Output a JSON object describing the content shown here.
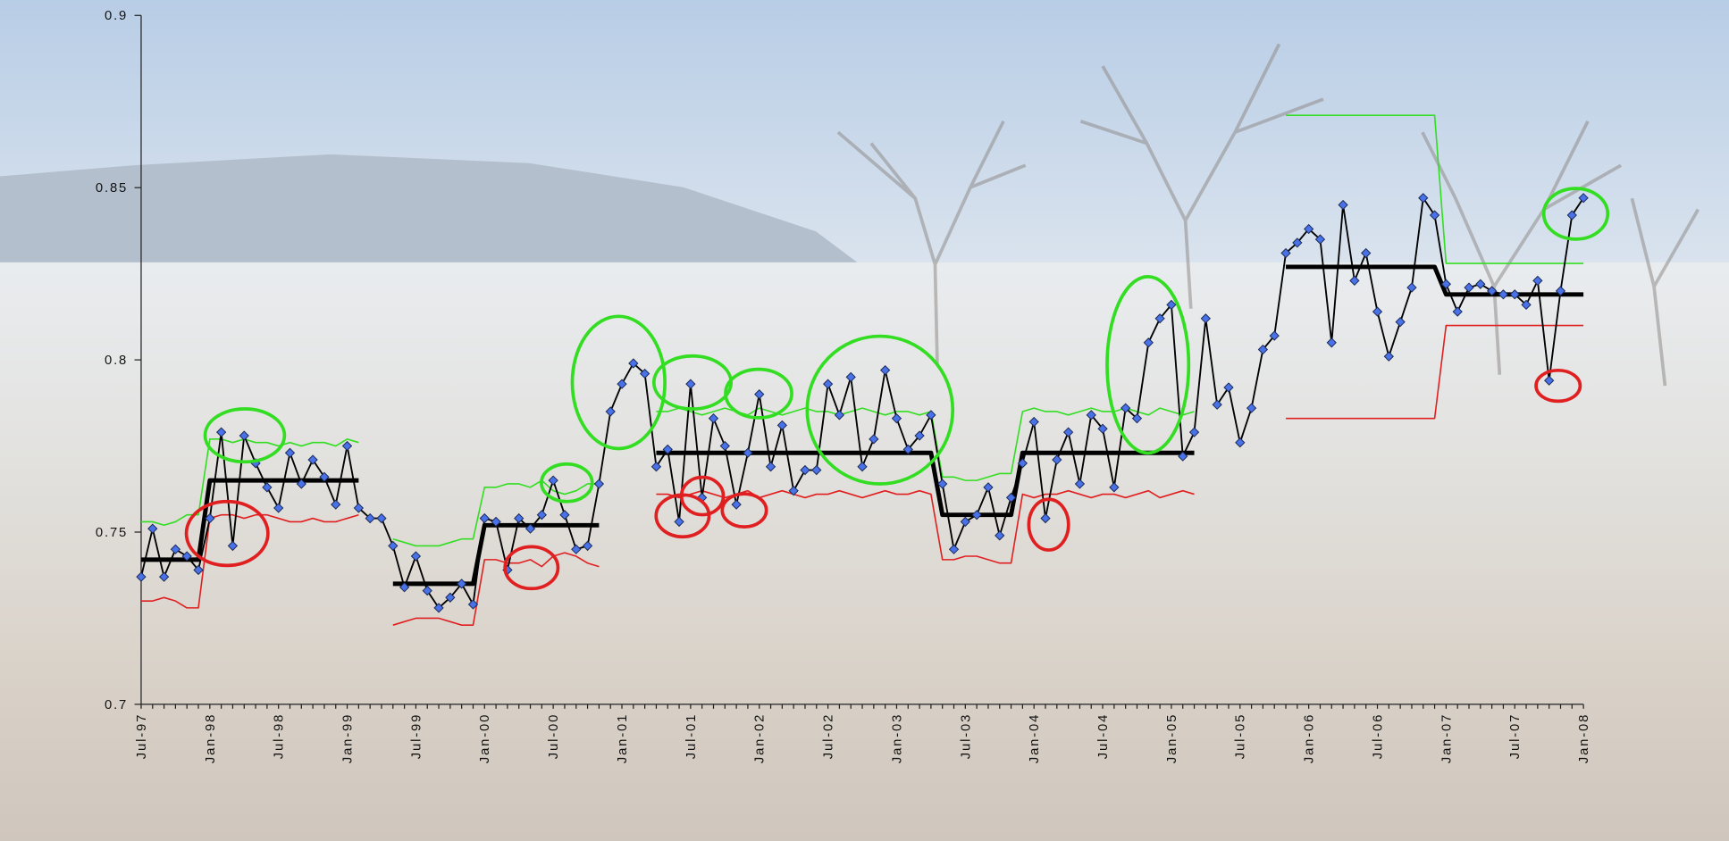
{
  "chart_data": {
    "type": "line",
    "categories": [
      "Jul-97",
      null,
      null,
      null,
      null,
      null,
      "Jan-98",
      null,
      null,
      null,
      null,
      null,
      "Jul-98",
      null,
      null,
      null,
      null,
      null,
      "Jan-99",
      null,
      null,
      null,
      null,
      null,
      "Jul-99",
      null,
      null,
      null,
      null,
      null,
      "Jan-00",
      null,
      null,
      null,
      null,
      null,
      "Jul-00",
      null,
      null,
      null,
      null,
      null,
      "Jan-01",
      null,
      null,
      null,
      null,
      null,
      "Jul-01",
      null,
      null,
      null,
      null,
      null,
      "Jan-02",
      null,
      null,
      null,
      null,
      null,
      "Jul-02",
      null,
      null,
      null,
      null,
      null,
      "Jan-03",
      null,
      null,
      null,
      null,
      null,
      "Jul-03",
      null,
      null,
      null,
      null,
      null,
      "Jan-04",
      null,
      null,
      null,
      null,
      null,
      "Jul-04",
      null,
      null,
      null,
      null,
      null,
      "Jan-05",
      null,
      null,
      null,
      null,
      null,
      "Jul-05",
      null,
      null,
      null,
      null,
      null,
      "Jan-06",
      null,
      null,
      null,
      null,
      null,
      "Jul-06",
      null,
      null,
      null,
      null,
      null,
      "Jan-07",
      null,
      null,
      null,
      null,
      null,
      "Jul-07",
      null,
      null,
      null,
      null,
      null,
      "Jan-08"
    ],
    "series": [
      {
        "color": "#e02020",
        "width": 1.3,
        "values": [
          0.73,
          0.73,
          0.731,
          0.73,
          0.728,
          0.728,
          0.754,
          0.755,
          0.755,
          0.754,
          0.755,
          0.755,
          0.754,
          0.753,
          0.753,
          0.754,
          0.753,
          0.753,
          0.754,
          0.755,
          null,
          null,
          0.723,
          0.724,
          0.725,
          0.725,
          0.725,
          0.724,
          0.723,
          0.723,
          0.742,
          0.742,
          0.741,
          0.741,
          0.742,
          0.74,
          0.743,
          0.744,
          0.743,
          0.741,
          0.74,
          null,
          null,
          null,
          null,
          0.761,
          0.761,
          0.76,
          0.761,
          0.762,
          0.761,
          0.76,
          0.761,
          0.762,
          0.76,
          0.761,
          0.762,
          0.761,
          0.76,
          0.761,
          0.761,
          0.762,
          0.761,
          0.76,
          0.761,
          0.762,
          0.761,
          0.761,
          0.762,
          0.761,
          0.742,
          0.742,
          0.743,
          0.743,
          0.742,
          0.741,
          0.741,
          0.761,
          0.76,
          0.761,
          0.761,
          0.762,
          0.761,
          0.76,
          0.761,
          0.761,
          0.76,
          0.761,
          0.762,
          0.76,
          0.761,
          0.762,
          0.761,
          null,
          null,
          null,
          null,
          null,
          null,
          null,
          0.783,
          0.783,
          0.783,
          0.783,
          0.783,
          0.783,
          0.783,
          0.783,
          0.783,
          0.783,
          0.783,
          0.783,
          0.783,
          0.783,
          0.81,
          0.81,
          0.81,
          0.81,
          0.81,
          0.81,
          0.81,
          0.81,
          0.81,
          0.81,
          0.81,
          0.81,
          0.81
        ]
      },
      {
        "color": "#33dd22",
        "width": 1.3,
        "values": [
          0.753,
          0.753,
          0.752,
          0.753,
          0.755,
          0.755,
          0.777,
          0.777,
          0.776,
          0.777,
          0.776,
          0.776,
          0.775,
          0.776,
          0.775,
          0.776,
          0.776,
          0.775,
          0.777,
          0.776,
          null,
          null,
          0.748,
          0.747,
          0.746,
          0.746,
          0.746,
          0.747,
          0.748,
          0.748,
          0.763,
          0.763,
          0.764,
          0.764,
          0.763,
          0.765,
          0.762,
          0.761,
          0.762,
          0.764,
          0.764,
          null,
          null,
          null,
          null,
          0.785,
          0.785,
          0.786,
          0.785,
          0.784,
          0.785,
          0.786,
          0.785,
          0.784,
          0.786,
          0.785,
          0.784,
          0.785,
          0.786,
          0.785,
          0.785,
          0.784,
          0.785,
          0.786,
          0.785,
          0.784,
          0.785,
          0.785,
          0.784,
          0.785,
          0.766,
          0.766,
          0.765,
          0.765,
          0.766,
          0.767,
          0.767,
          0.785,
          0.786,
          0.785,
          0.785,
          0.784,
          0.785,
          0.786,
          0.785,
          0.785,
          0.786,
          0.785,
          0.784,
          0.786,
          0.785,
          0.784,
          0.785,
          null,
          null,
          null,
          null,
          null,
          null,
          null,
          0.871,
          0.871,
          0.871,
          0.871,
          0.871,
          0.871,
          0.871,
          0.871,
          0.871,
          0.871,
          0.871,
          0.871,
          0.871,
          0.871,
          0.828,
          0.828,
          0.828,
          0.828,
          0.828,
          0.828,
          0.828,
          0.828,
          0.828,
          0.828,
          0.828,
          0.828,
          0.828
        ]
      },
      {
        "color": "#000000",
        "width": 4,
        "values": [
          0.742,
          0.742,
          0.742,
          0.742,
          0.742,
          0.742,
          0.765,
          0.765,
          0.765,
          0.765,
          0.765,
          0.765,
          0.765,
          0.765,
          0.765,
          0.765,
          0.765,
          0.765,
          0.765,
          0.765,
          null,
          null,
          0.735,
          0.735,
          0.735,
          0.735,
          0.735,
          0.735,
          0.735,
          0.735,
          0.752,
          0.752,
          0.752,
          0.752,
          0.752,
          0.752,
          0.752,
          0.752,
          0.752,
          0.752,
          0.752,
          null,
          null,
          null,
          null,
          0.773,
          0.773,
          0.773,
          0.773,
          0.773,
          0.773,
          0.773,
          0.773,
          0.773,
          0.773,
          0.773,
          0.773,
          0.773,
          0.773,
          0.773,
          0.773,
          0.773,
          0.773,
          0.773,
          0.773,
          0.773,
          0.773,
          0.773,
          0.773,
          0.773,
          0.755,
          0.755,
          0.755,
          0.755,
          0.755,
          0.755,
          0.755,
          0.773,
          0.773,
          0.773,
          0.773,
          0.773,
          0.773,
          0.773,
          0.773,
          0.773,
          0.773,
          0.773,
          0.773,
          0.773,
          0.773,
          0.773,
          0.773,
          null,
          null,
          null,
          null,
          null,
          null,
          null,
          0.827,
          0.827,
          0.827,
          0.827,
          0.827,
          0.827,
          0.827,
          0.827,
          0.827,
          0.827,
          0.827,
          0.827,
          0.827,
          0.827,
          0.819,
          0.819,
          0.819,
          0.819,
          0.819,
          0.819,
          0.819,
          0.819,
          0.819,
          0.819,
          0.819,
          0.819,
          0.819
        ]
      },
      {
        "color": "#000000",
        "width": 1.5,
        "marker": "diamond",
        "marker_color": "#4a72e8",
        "values": [
          0.737,
          0.751,
          0.737,
          0.745,
          0.743,
          0.739,
          0.754,
          0.779,
          0.746,
          0.778,
          0.77,
          0.763,
          0.757,
          0.773,
          0.764,
          0.771,
          0.766,
          0.758,
          0.775,
          0.757,
          0.754,
          0.754,
          0.746,
          0.734,
          0.743,
          0.733,
          0.728,
          0.731,
          0.735,
          0.729,
          0.754,
          0.753,
          0.739,
          0.754,
          0.751,
          0.755,
          0.765,
          0.755,
          0.745,
          0.746,
          0.764,
          0.785,
          0.793,
          0.799,
          0.796,
          0.769,
          0.774,
          0.753,
          0.793,
          0.76,
          0.783,
          0.775,
          0.758,
          0.773,
          0.79,
          0.769,
          0.781,
          0.762,
          0.768,
          0.768,
          0.793,
          0.784,
          0.795,
          0.769,
          0.777,
          0.797,
          0.783,
          0.774,
          0.778,
          0.784,
          0.764,
          0.745,
          0.753,
          0.755,
          0.763,
          0.749,
          0.76,
          0.77,
          0.782,
          0.754,
          0.771,
          0.779,
          0.764,
          0.784,
          0.78,
          0.763,
          0.786,
          0.783,
          0.805,
          0.812,
          0.816,
          0.772,
          0.779,
          0.812,
          0.787,
          0.792,
          0.776,
          0.786,
          0.803,
          0.807,
          0.831,
          0.834,
          0.838,
          0.835,
          0.805,
          0.845,
          0.823,
          0.831,
          0.814,
          0.801,
          0.811,
          0.821,
          0.847,
          0.842,
          0.822,
          0.814,
          0.821,
          0.822,
          0.82,
          0.819,
          0.819,
          0.816,
          0.823,
          0.794,
          0.82,
          0.842,
          0.847
        ]
      }
    ],
    "ylim": [
      0.7,
      0.9
    ],
    "yticks": [
      0.7,
      0.75,
      0.8,
      0.85,
      0.9
    ],
    "grid": false
  }
}
